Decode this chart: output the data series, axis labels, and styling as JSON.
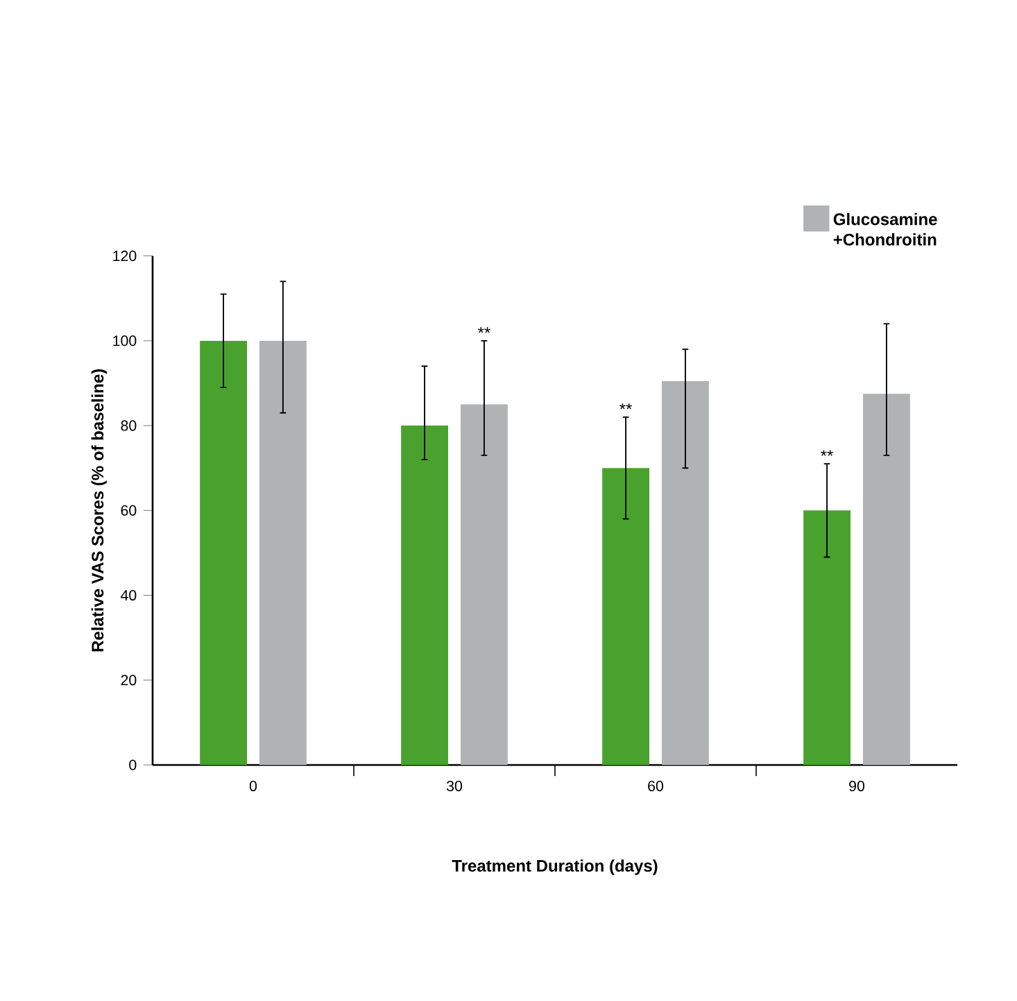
{
  "chart_data": {
    "type": "bar",
    "xlabel": "Treatment Duration (days)",
    "ylabel": "Relative VAS Scores (% of baseline)",
    "categories": [
      "0",
      "30",
      "60",
      "90"
    ],
    "series": [
      {
        "color": "#4aa22e",
        "values": [
          100,
          80,
          70,
          60
        ],
        "errors": [
          [
            89,
            111
          ],
          [
            72,
            94
          ],
          [
            58,
            82
          ],
          [
            49,
            71
          ]
        ]
      },
      {
        "name": "Glucosamine +Chondroitin",
        "color": "#b1b2b4",
        "values": [
          100,
          85,
          90.5,
          87.5
        ],
        "errors": [
          [
            83,
            114
          ],
          [
            73,
            100
          ],
          [
            70,
            98
          ],
          [
            73,
            104
          ]
        ]
      }
    ],
    "ylim": [
      0,
      120
    ],
    "yticks": [
      0,
      20,
      40,
      60,
      80,
      100,
      120
    ],
    "legend": "top right",
    "annotations": [
      {
        "text": "**",
        "y": 100
      },
      {
        "text": "**",
        "x": "60",
        "y": 82
      },
      {
        "text": "**",
        "x": "90",
        "y": 71
      }
    ]
  }
}
